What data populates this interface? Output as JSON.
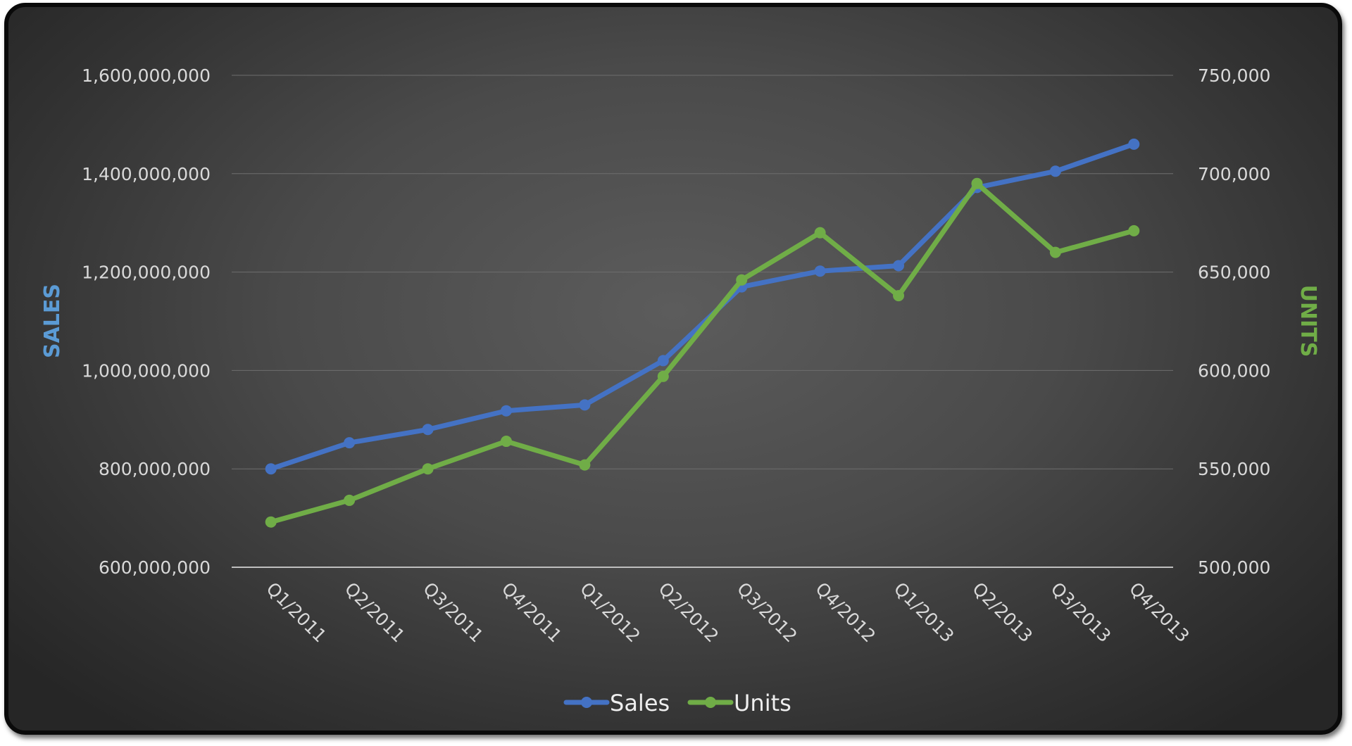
{
  "chart_data": {
    "type": "line",
    "categories": [
      "Q1/2011",
      "Q2/2011",
      "Q3/2011",
      "Q4/2011",
      "Q1/2012",
      "Q2/2012",
      "Q3/2012",
      "Q4/2012",
      "Q1/2013",
      "Q2/2013",
      "Q3/2013",
      "Q4/2013"
    ],
    "series": [
      {
        "name": "Sales",
        "axis": "left",
        "color": "#4472c4",
        "values": [
          800000000,
          853000000,
          880000000,
          918000000,
          930000000,
          1020000000,
          1170000000,
          1202000000,
          1213000000,
          1372000000,
          1405000000,
          1460000000
        ]
      },
      {
        "name": "Units",
        "axis": "right",
        "color": "#70ad47",
        "values": [
          523000,
          534000,
          550000,
          564000,
          552000,
          597000,
          646000,
          670000,
          638000,
          695000,
          660000,
          671000
        ]
      }
    ],
    "title": "",
    "xlabel": "",
    "ylabel": "SALES",
    "ylabel_color": "#5b9bd5",
    "y2label": "UNITS",
    "y2label_color": "#70ad47",
    "ylim": [
      600000000,
      1600000000
    ],
    "y2lim": [
      500000,
      750000
    ],
    "yticks": [
      "600,000,000",
      "800,000,000",
      "1,000,000,000",
      "1,200,000,000",
      "1,400,000,000",
      "1,600,000,000"
    ],
    "y2ticks": [
      "500,000",
      "550,000",
      "600,000",
      "650,000",
      "700,000",
      "750,000"
    ],
    "grid": true,
    "legend": "bottom-center",
    "background": "dark gradient"
  }
}
